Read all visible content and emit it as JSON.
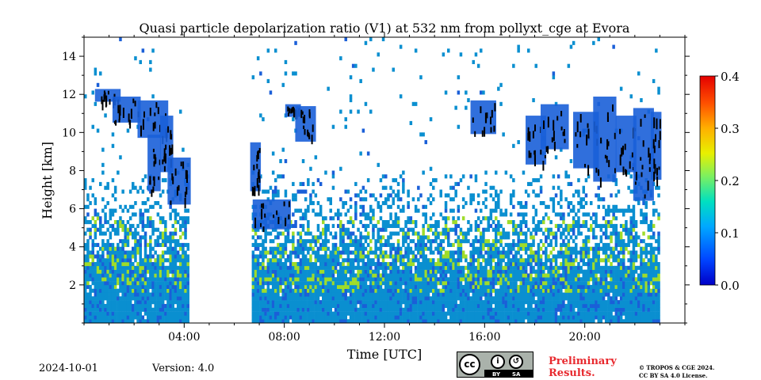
{
  "chart_data": {
    "type": "heatmap",
    "title": "Quasi particle depolarization ratio (V1) at 532 nm from pollyxt_cge at Evora",
    "xlabel": "Time [UTC]",
    "ylabel": "Height [km]",
    "x_unit": "hours UTC",
    "xlim": [
      0,
      24
    ],
    "ylim": [
      0,
      15
    ],
    "x_ticks": [
      {
        "value": 4,
        "label": "04:00"
      },
      {
        "value": 8,
        "label": "08:00"
      },
      {
        "value": 12,
        "label": "12:00"
      },
      {
        "value": 16,
        "label": "16:00"
      },
      {
        "value": 20,
        "label": "20:00"
      }
    ],
    "y_ticks": [
      {
        "value": 2,
        "label": "2"
      },
      {
        "value": 4,
        "label": "4"
      },
      {
        "value": 6,
        "label": "6"
      },
      {
        "value": 8,
        "label": "8"
      },
      {
        "value": 10,
        "label": "10"
      },
      {
        "value": 12,
        "label": "12"
      },
      {
        "value": 14,
        "label": "14"
      }
    ],
    "colorbar": {
      "min": 0.0,
      "max": 0.4,
      "ticks": [
        "0.0",
        "0.1",
        "0.2",
        "0.3",
        "0.4"
      ],
      "colormap": "jet"
    },
    "no_data_periods": [
      [
        4.2,
        6.65
      ]
    ],
    "data_end_hour": 23.0,
    "colors": {
      "background_aerosol": "#0a8fd0",
      "high_ratio_noise": "#9fdc2a",
      "low_ratio_layer": "#1a5fd8",
      "cloud": "#000000"
    },
    "clouds": [
      [
        0.5,
        11.7,
        1.4,
        12.2
      ],
      [
        1.2,
        10.6,
        2.2,
        11.8
      ],
      [
        2.2,
        9.8,
        3.3,
        11.6
      ],
      [
        2.6,
        7.0,
        3.0,
        9.8
      ],
      [
        3.1,
        8.0,
        3.5,
        10.8
      ],
      [
        3.4,
        6.3,
        4.2,
        8.6
      ],
      [
        6.7,
        7.0,
        7.0,
        9.4
      ],
      [
        8.1,
        10.9,
        8.6,
        11.4
      ],
      [
        8.5,
        9.6,
        9.2,
        11.3
      ],
      [
        6.8,
        5.0,
        8.2,
        6.4
      ],
      [
        15.5,
        10.0,
        16.4,
        11.6
      ],
      [
        17.7,
        8.4,
        18.4,
        10.8
      ],
      [
        18.3,
        9.2,
        19.3,
        11.4
      ],
      [
        19.6,
        8.2,
        20.5,
        11.0
      ],
      [
        20.4,
        7.5,
        21.2,
        11.8
      ],
      [
        21.3,
        8.0,
        22.0,
        10.8
      ],
      [
        22.0,
        6.5,
        22.7,
        11.2
      ],
      [
        22.7,
        7.6,
        23.0,
        11.0
      ]
    ]
  },
  "footer": {
    "date": "2024-10-01",
    "version": "Version: 4.0",
    "preliminary": "Preliminary\nResults.",
    "copyright": "© TROPOS & CGE 2024.\nCC BY SA 4.0 License.",
    "license_badge": {
      "cc": "cc",
      "by": "BY",
      "sa": "SA"
    }
  }
}
